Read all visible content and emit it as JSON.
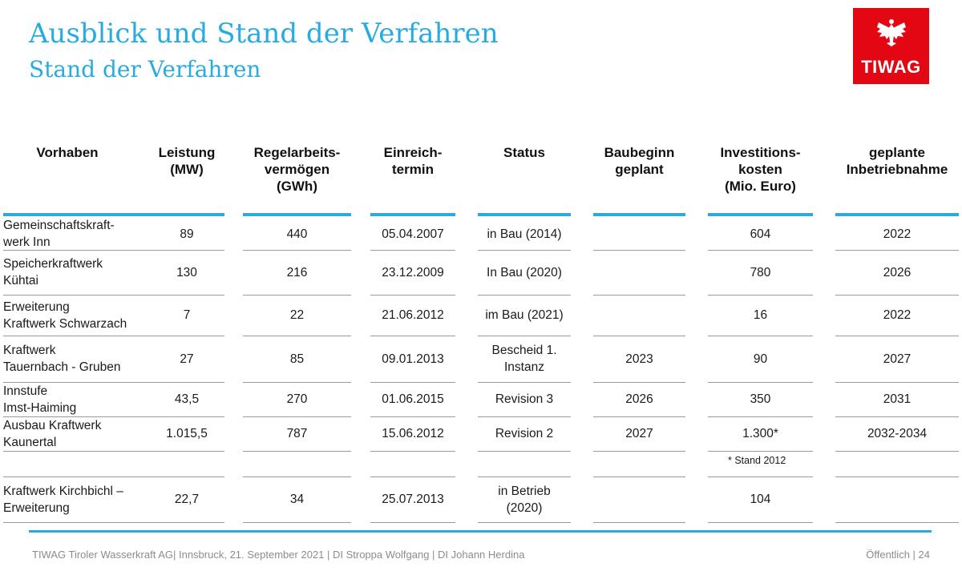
{
  "title": "Ausblick und Stand der Verfahren",
  "subtitle": "Stand der Verfahren",
  "logo": {
    "text": "TIWAG",
    "color": "#e30613"
  },
  "accent_color": "#29abe2",
  "table": {
    "headers": [
      "Vorhaben",
      "Leistung\n(MW)",
      "Regelarbeits-\nvermögen\n(GWh)",
      "Einreich-\ntermin",
      "Status",
      "Baubeginn\ngeplant",
      "Investitions-\nkosten\n(Mio. Euro)",
      "geplante\nInbetriebnahme"
    ],
    "rows": [
      [
        "Gemeinschaftskraft-\nwerk Inn",
        "89",
        "440",
        "05.04.2007",
        "in Bau (2014)",
        "",
        "604",
        "2022"
      ],
      [
        "Speicherkraftwerk\nKühtai",
        "130",
        "216",
        "23.12.2009",
        "In Bau (2020)",
        "",
        "780",
        "2026"
      ],
      [
        "Erweiterung\nKraftwerk Schwarzach",
        "7",
        "22",
        "21.06.2012",
        "im Bau (2021)",
        "",
        "16",
        "2022"
      ],
      [
        "Kraftwerk\nTauernbach - Gruben",
        "27",
        "85",
        "09.01.2013",
        "Bescheid 1.\nInstanz",
        "2023",
        "90",
        "2027"
      ],
      [
        "Innstufe\nImst-Haiming",
        "43,5",
        "270",
        "01.06.2015",
        "Revision 3",
        "2026",
        "350",
        "2031"
      ],
      [
        "Ausbau Kraftwerk\nKaunertal",
        "1.015,5",
        "787",
        "15.06.2012",
        "Revision 2",
        "2027",
        "1.300*",
        "2032-2034"
      ],
      [
        "Kraftwerk Kirchbichl –\nErweiterung",
        "22,7",
        "34",
        "25.07.2013",
        "in Betrieb\n(2020)",
        "",
        "104",
        ""
      ]
    ],
    "footnote": "* Stand 2012"
  },
  "footer": {
    "left": "TIWAG Tiroler Wasserkraft AG| Innsbruck, 21. September 2021 | DI Stroppa Wolfgang | DI Johann Herdina",
    "right": "Öffentlich | 24"
  }
}
